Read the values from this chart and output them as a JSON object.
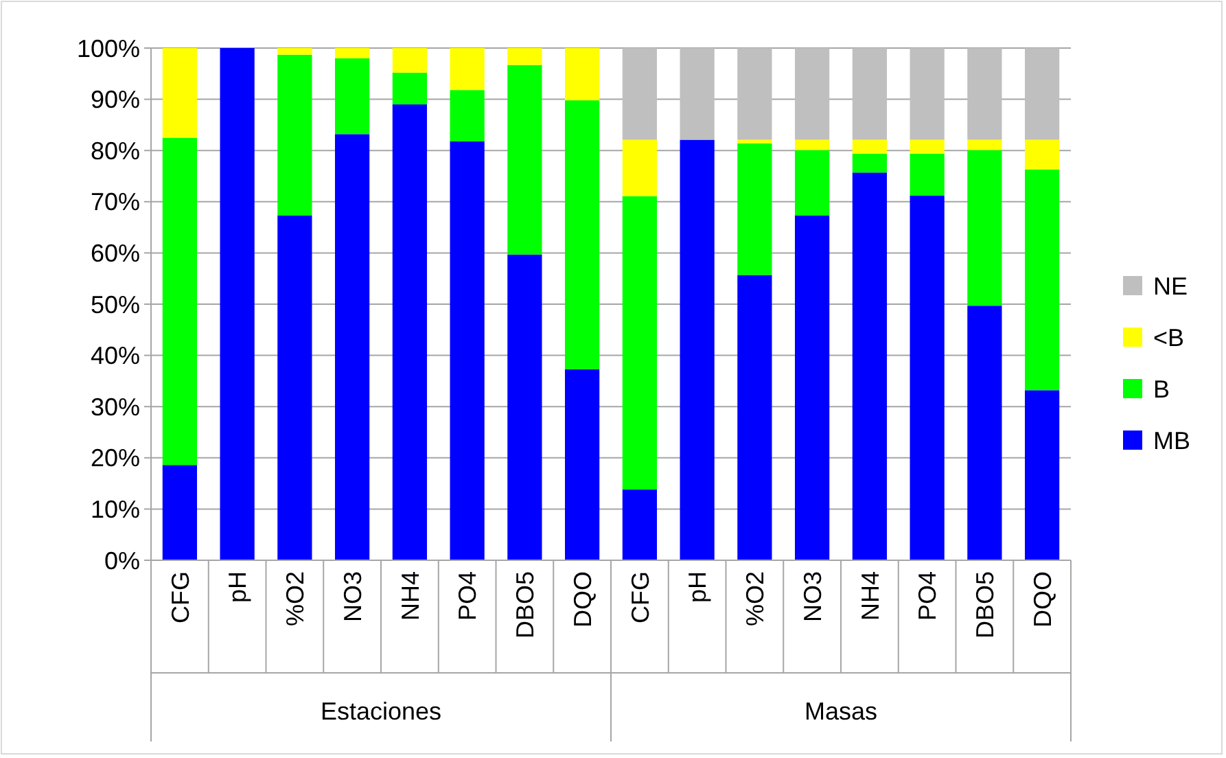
{
  "chart_data": {
    "type": "bar",
    "stacked": true,
    "categories": [
      "CFG",
      "pH",
      "%O2",
      "NO3",
      "NH4",
      "PO4",
      "DBO5",
      "DQO",
      "CFG",
      "pH",
      "%O2",
      "NO3",
      "NH4",
      "PO4",
      "DBO5",
      "DQO"
    ],
    "annotations": [
      "Estaciones",
      "Masas"
    ],
    "ylim": [
      0,
      100
    ],
    "yticks": [
      {
        "value": 0,
        "label": "0%"
      },
      {
        "value": 10,
        "label": "10%"
      },
      {
        "value": 20,
        "label": "20%"
      },
      {
        "value": 30,
        "label": "30%"
      },
      {
        "value": 40,
        "label": "40%"
      },
      {
        "value": 50,
        "label": "50%"
      },
      {
        "value": 60,
        "label": "60%"
      },
      {
        "value": 70,
        "label": "70%"
      },
      {
        "value": 80,
        "label": "80%"
      },
      {
        "value": 90,
        "label": "90%"
      },
      {
        "value": 100,
        "label": "100%"
      }
    ],
    "grid": "y",
    "legend": "right",
    "series": [
      {
        "name": "MB",
        "color": "#0000ff",
        "values": [
          18.6,
          100,
          67.3,
          83.2,
          89.0,
          81.8,
          59.7,
          37.3,
          13.8,
          82.1,
          55.7,
          67.3,
          75.7,
          71.2,
          49.7,
          33.2
        ]
      },
      {
        "name": "B",
        "color": "#00ff00",
        "values": [
          63.9,
          0,
          31.4,
          14.8,
          6.2,
          10.0,
          37.0,
          52.5,
          57.3,
          0,
          25.7,
          12.8,
          3.7,
          8.2,
          30.4,
          43.1
        ]
      },
      {
        "name": "<B",
        "color": "#ffff00",
        "values": [
          17.5,
          0,
          1.3,
          2.0,
          4.8,
          8.2,
          3.3,
          10.2,
          11.0,
          0,
          0.7,
          2.0,
          2.7,
          2.7,
          2.0,
          5.8
        ]
      },
      {
        "name": "NE",
        "color": "#bfbfbf",
        "values": [
          0,
          0,
          0,
          0,
          0,
          0,
          0,
          0,
          17.9,
          17.9,
          17.9,
          17.9,
          17.9,
          17.9,
          17.9,
          17.9
        ]
      }
    ]
  }
}
